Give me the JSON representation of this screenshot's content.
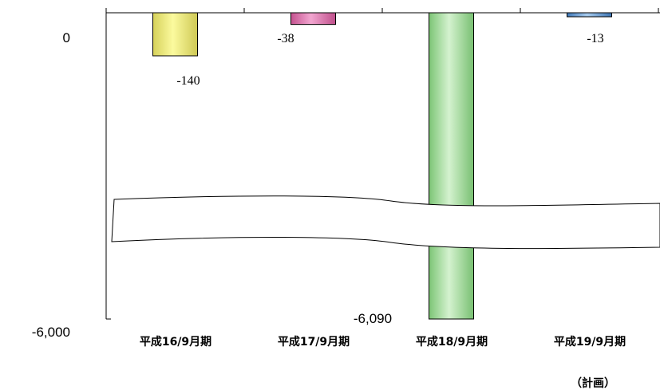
{
  "chart_data": {
    "type": "bar",
    "categories": [
      "平成16/9月期",
      "平成17/9月期",
      "平成18/9月期",
      "平成19/9月期"
    ],
    "values": [
      -140,
      -38,
      -6090,
      -13
    ],
    "data_labels": [
      "-140",
      "-38",
      "-6,090",
      "-13"
    ],
    "y_tick_labels": [
      "0",
      "-6,000"
    ],
    "ylim": [
      -6000,
      0
    ],
    "axis_break": true,
    "grid": false,
    "colors": [
      "#f2f07a",
      "#e377b2",
      "#a6e0a0",
      "#6ea2d8"
    ],
    "note": "（計画）"
  }
}
